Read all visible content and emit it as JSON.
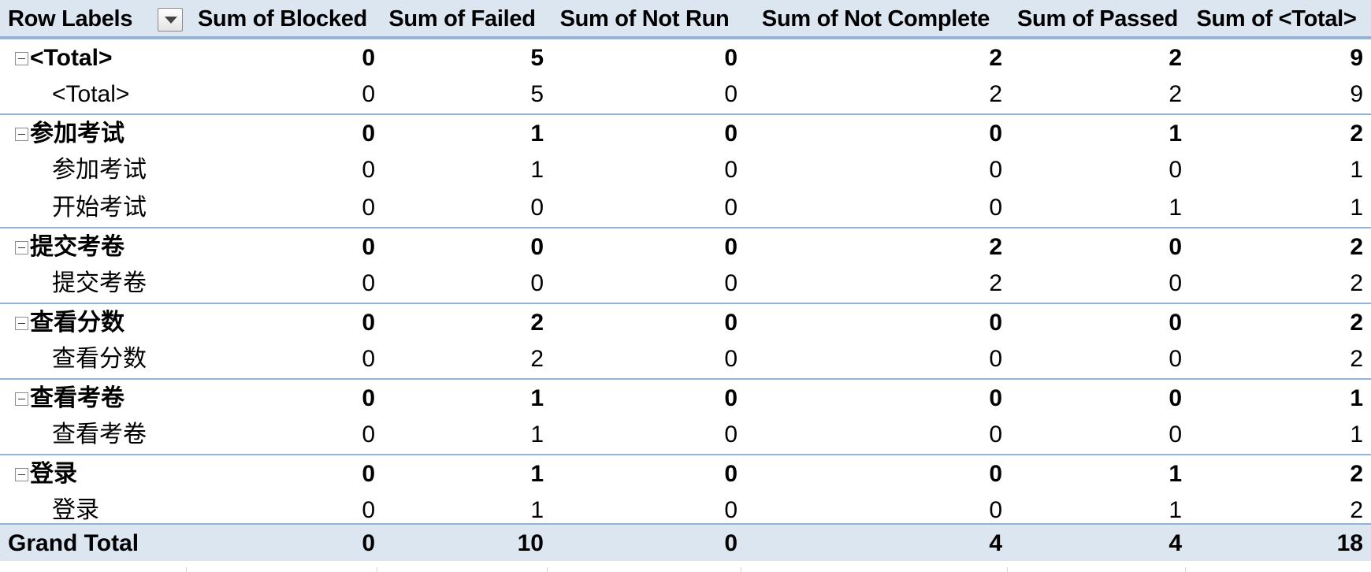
{
  "pivot": {
    "header": {
      "row_labels": "Row Labels",
      "filter_icon": "dropdown-arrow-icon",
      "columns": [
        "Sum of Blocked",
        "Sum of Failed",
        "Sum of Not Run",
        "Sum of Not Complete",
        "Sum of Passed",
        "Sum of <Total>"
      ]
    },
    "rows": [
      {
        "kind": "group",
        "label": "<Total>",
        "values": [
          "0",
          "5",
          "0",
          "2",
          "2",
          "9"
        ]
      },
      {
        "kind": "item",
        "label": "<Total>",
        "values": [
          "0",
          "5",
          "0",
          "2",
          "2",
          "9"
        ]
      },
      {
        "kind": "group",
        "label": "参加考试",
        "values": [
          "0",
          "1",
          "0",
          "0",
          "1",
          "2"
        ]
      },
      {
        "kind": "item",
        "label": "参加考试",
        "values": [
          "0",
          "1",
          "0",
          "0",
          "0",
          "1"
        ]
      },
      {
        "kind": "item",
        "label": "开始考试",
        "values": [
          "0",
          "0",
          "0",
          "0",
          "1",
          "1"
        ]
      },
      {
        "kind": "group",
        "label": "提交考卷",
        "values": [
          "0",
          "0",
          "0",
          "2",
          "0",
          "2"
        ]
      },
      {
        "kind": "item",
        "label": "提交考卷",
        "values": [
          "0",
          "0",
          "0",
          "2",
          "0",
          "2"
        ]
      },
      {
        "kind": "group",
        "label": "查看分数",
        "values": [
          "0",
          "2",
          "0",
          "0",
          "0",
          "2"
        ]
      },
      {
        "kind": "item",
        "label": "查看分数",
        "values": [
          "0",
          "2",
          "0",
          "0",
          "0",
          "2"
        ]
      },
      {
        "kind": "group",
        "label": "查看考卷",
        "values": [
          "0",
          "1",
          "0",
          "0",
          "0",
          "1"
        ]
      },
      {
        "kind": "item",
        "label": "查看考卷",
        "values": [
          "0",
          "1",
          "0",
          "0",
          "0",
          "1"
        ]
      },
      {
        "kind": "group",
        "label": "登录",
        "values": [
          "0",
          "1",
          "0",
          "0",
          "1",
          "2"
        ]
      },
      {
        "kind": "item",
        "label": "登录",
        "values": [
          "0",
          "1",
          "0",
          "0",
          "1",
          "2"
        ]
      }
    ],
    "grand_total": {
      "label": "Grand Total",
      "values": [
        "0",
        "10",
        "0",
        "4",
        "4",
        "18"
      ]
    },
    "colors": {
      "header_fill": "#dce6f1",
      "border": "#95b3d7"
    },
    "toggle_icon": "collapse-minus-icon"
  }
}
